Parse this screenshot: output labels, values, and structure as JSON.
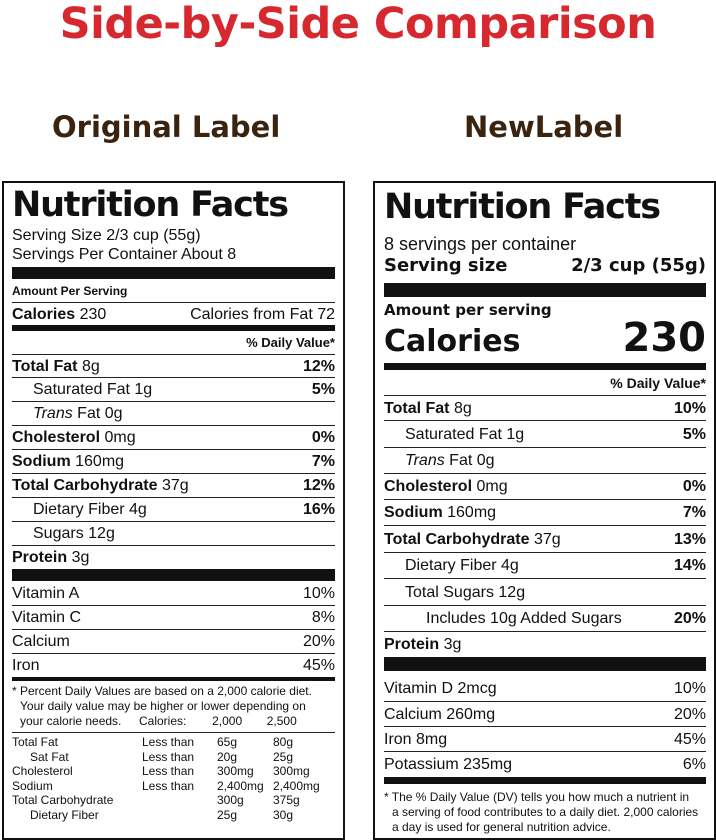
{
  "title": "Side-by-Side Comparison",
  "headings": {
    "original": "Original Label",
    "new": "NewLabel"
  },
  "original": {
    "nf_title": "Nutrition Facts",
    "serving_size": "Serving Size 2/3 cup (55g)",
    "servings": "Servings Per Container About 8",
    "amount_per_serving": "Amount Per Serving",
    "calories_label": "Calories",
    "calories_value": "230",
    "calories_from_fat": "Calories from Fat 72",
    "dv_header": "% Daily Value*",
    "nutrients": [
      {
        "name": "Total Fat",
        "amount": "8g",
        "dv": "12%"
      },
      {
        "name": "Saturated Fat",
        "amount": "1g",
        "dv": "5%"
      },
      {
        "name": "Trans",
        "amount": "Fat 0g",
        "dv": ""
      },
      {
        "name": "Cholesterol",
        "amount": "0mg",
        "dv": "0%"
      },
      {
        "name": "Sodium",
        "amount": "160mg",
        "dv": "7%"
      },
      {
        "name": "Total Carbohydrate",
        "amount": "37g",
        "dv": "12%"
      },
      {
        "name": "Dietary Fiber",
        "amount": "4g",
        "dv": "16%"
      },
      {
        "name": "Sugars",
        "amount": "12g",
        "dv": ""
      },
      {
        "name": "Protein",
        "amount": "3g",
        "dv": ""
      }
    ],
    "vitamins": [
      {
        "name": "Vitamin A",
        "dv": "10%"
      },
      {
        "name": "Vitamin C",
        "dv": "8%"
      },
      {
        "name": "Calcium",
        "dv": "20%"
      },
      {
        "name": "Iron",
        "dv": "45%"
      }
    ],
    "footnote_lines": [
      "* Percent Daily Values are based on a 2,000 calorie diet.",
      "Your daily value may be higher or lower depending on",
      "your calorie needs."
    ],
    "dv_table": {
      "header": [
        "Calories:",
        "2,000",
        "2,500"
      ],
      "rows": [
        [
          "Total Fat",
          "Less than",
          "65g",
          "80g"
        ],
        [
          "Sat Fat",
          "Less than",
          "20g",
          "25g"
        ],
        [
          "Cholesterol",
          "Less than",
          "300mg",
          "300mg"
        ],
        [
          "Sodium",
          "Less than",
          "2,400mg",
          "2,400mg"
        ],
        [
          "Total Carbohydrate",
          "",
          "300g",
          "375g"
        ],
        [
          "Dietary Fiber",
          "",
          "25g",
          "30g"
        ]
      ]
    }
  },
  "new": {
    "nf_title": "Nutrition Facts",
    "servings": "8 servings per container",
    "serving_size_label": "Serving size",
    "serving_size_value": "2/3 cup (55g)",
    "amount_per_serving": "Amount per serving",
    "calories_label": "Calories",
    "calories_value": "230",
    "dv_header": "% Daily Value*",
    "nutrients": [
      {
        "name": "Total Fat",
        "amount": "8g",
        "dv": "10%"
      },
      {
        "name": "Saturated Fat",
        "amount": "1g",
        "dv": "5%"
      },
      {
        "name": "Trans",
        "amount": "Fat 0g",
        "dv": ""
      },
      {
        "name": "Cholesterol",
        "amount": "0mg",
        "dv": "0%"
      },
      {
        "name": "Sodium",
        "amount": "160mg",
        "dv": "7%"
      },
      {
        "name": "Total Carbohydrate",
        "amount": "37g",
        "dv": "13%"
      },
      {
        "name": "Dietary Fiber",
        "amount": "4g",
        "dv": "14%"
      },
      {
        "name": "Total Sugars",
        "amount": "12g",
        "dv": ""
      },
      {
        "name": "Includes 10g Added Sugars",
        "amount": "",
        "dv": "20%"
      },
      {
        "name": "Protein",
        "amount": "3g",
        "dv": ""
      }
    ],
    "vitamins": [
      {
        "name": "Vitamin D 2mcg",
        "dv": "10%"
      },
      {
        "name": "Calcium 260mg",
        "dv": "20%"
      },
      {
        "name": "Iron 8mg",
        "dv": "45%"
      },
      {
        "name": "Potassium 235mg",
        "dv": "6%"
      }
    ],
    "footnote_lines": [
      "* The % Daily Value (DV) tells you how much a nutrient in",
      "a serving of food contributes to a daily diet. 2,000 calories",
      "a day is used for general nutrition advice."
    ]
  }
}
